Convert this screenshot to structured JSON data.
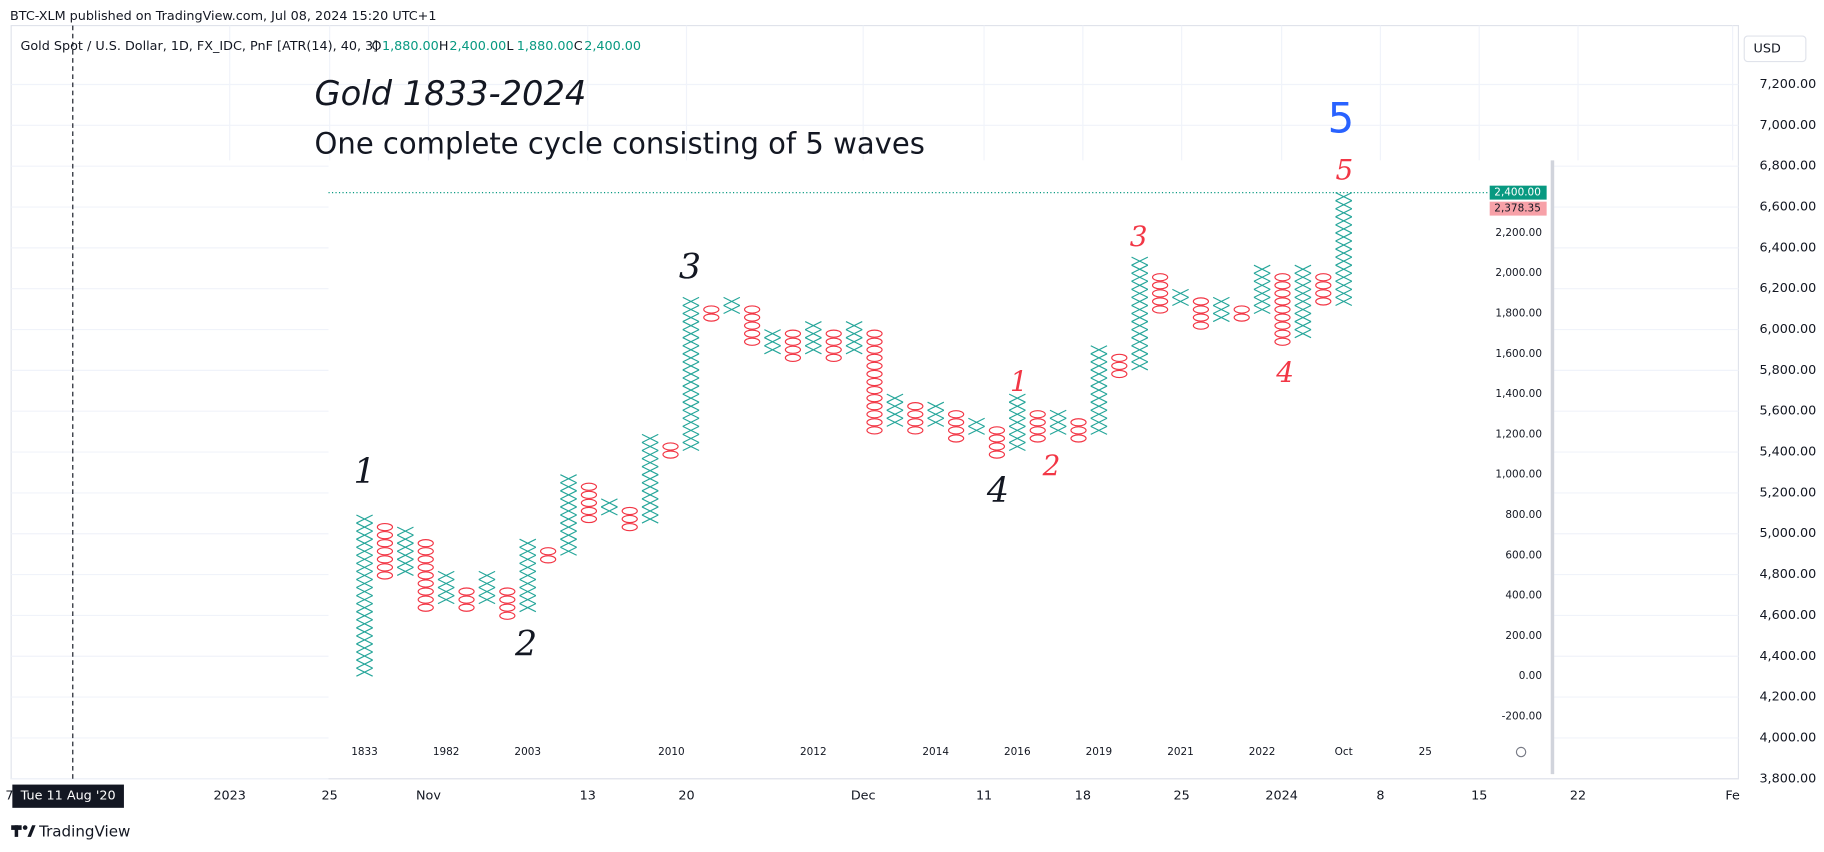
{
  "header": {
    "publisher": "BTC-XLM published on TradingView.com, Jul 08, 2024 15:20 UTC+1"
  },
  "legend": {
    "symbol": "Gold Spot / U.S. Dollar, 1D, FX_IDC, PnF [ATR(14), 40, 3]",
    "ohlc": [
      {
        "key": "O",
        "value": "1,880.00"
      },
      {
        "key": "H",
        "value": "2,400.00"
      },
      {
        "key": "L",
        "value": "1,880.00"
      },
      {
        "key": "C",
        "value": "2,400.00"
      }
    ]
  },
  "chart_data": {
    "type": "pnf",
    "title": "Gold 1833-2024",
    "subtitle": "One complete cycle consisting of 5 waves",
    "title_color": "#e0226e",
    "subtitle_color": "#2962ff",
    "x_color": "#26a69a",
    "o_color": "#f23645",
    "box_size": 40,
    "ylim": [
      -440,
      2560
    ],
    "yticks": [
      {
        "value": -200,
        "label": "-200.00"
      },
      {
        "value": 0,
        "label": "0.00"
      },
      {
        "value": 200,
        "label": "200.00"
      },
      {
        "value": 400,
        "label": "400.00"
      },
      {
        "value": 600,
        "label": "600.00"
      },
      {
        "value": 800,
        "label": "800.00"
      },
      {
        "value": 1000,
        "label": "1,000.00"
      },
      {
        "value": 1200,
        "label": "1,200.00"
      },
      {
        "value": 1400,
        "label": "1,400.00"
      },
      {
        "value": 1600,
        "label": "1,600.00"
      },
      {
        "value": 1800,
        "label": "1,800.00"
      },
      {
        "value": 2000,
        "label": "2,000.00"
      },
      {
        "value": 2200,
        "label": "2,200.00"
      }
    ],
    "x_labels": [
      "1833",
      "1982",
      "2003",
      "2010",
      "2012",
      "2014",
      "2016",
      "2019",
      "2021",
      "2022",
      "Oct",
      "25"
    ],
    "columns": [
      {
        "type": "X",
        "low": 0,
        "high": 800
      },
      {
        "type": "O",
        "low": 480,
        "high": 760
      },
      {
        "type": "X",
        "low": 500,
        "high": 720
      },
      {
        "type": "O",
        "low": 320,
        "high": 680
      },
      {
        "type": "X",
        "low": 360,
        "high": 500
      },
      {
        "type": "O",
        "low": 320,
        "high": 440
      },
      {
        "type": "X",
        "low": 360,
        "high": 500
      },
      {
        "type": "O",
        "low": 280,
        "high": 440
      },
      {
        "type": "X",
        "low": 320,
        "high": 680
      },
      {
        "type": "O",
        "low": 560,
        "high": 640
      },
      {
        "type": "X",
        "low": 600,
        "high": 1000
      },
      {
        "type": "O",
        "low": 760,
        "high": 960
      },
      {
        "type": "X",
        "low": 800,
        "high": 880
      },
      {
        "type": "O",
        "low": 720,
        "high": 840
      },
      {
        "type": "X",
        "low": 760,
        "high": 1200
      },
      {
        "type": "O",
        "low": 1080,
        "high": 1160
      },
      {
        "type": "X",
        "low": 1120,
        "high": 1880
      },
      {
        "type": "O",
        "low": 1760,
        "high": 1840
      },
      {
        "type": "X",
        "low": 1800,
        "high": 1880
      },
      {
        "type": "O",
        "low": 1640,
        "high": 1840
      },
      {
        "type": "X",
        "low": 1600,
        "high": 1720
      },
      {
        "type": "O",
        "low": 1560,
        "high": 1720
      },
      {
        "type": "X",
        "low": 1600,
        "high": 1760
      },
      {
        "type": "O",
        "low": 1560,
        "high": 1720
      },
      {
        "type": "X",
        "low": 1600,
        "high": 1760
      },
      {
        "type": "O",
        "low": 1200,
        "high": 1720
      },
      {
        "type": "X",
        "low": 1240,
        "high": 1400
      },
      {
        "type": "O",
        "low": 1200,
        "high": 1360
      },
      {
        "type": "X",
        "low": 1240,
        "high": 1360
      },
      {
        "type": "O",
        "low": 1160,
        "high": 1320
      },
      {
        "type": "X",
        "low": 1200,
        "high": 1280
      },
      {
        "type": "O",
        "low": 1080,
        "high": 1240
      },
      {
        "type": "X",
        "low": 1120,
        "high": 1400
      },
      {
        "type": "O",
        "low": 1160,
        "high": 1320
      },
      {
        "type": "X",
        "low": 1200,
        "high": 1320
      },
      {
        "type": "O",
        "low": 1160,
        "high": 1280
      },
      {
        "type": "X",
        "low": 1200,
        "high": 1640
      },
      {
        "type": "O",
        "low": 1480,
        "high": 1600
      },
      {
        "type": "X",
        "low": 1520,
        "high": 2080
      },
      {
        "type": "O",
        "low": 1800,
        "high": 2000
      },
      {
        "type": "X",
        "low": 1840,
        "high": 1920
      },
      {
        "type": "O",
        "low": 1720,
        "high": 1880
      },
      {
        "type": "X",
        "low": 1760,
        "high": 1880
      },
      {
        "type": "O",
        "low": 1760,
        "high": 1840
      },
      {
        "type": "X",
        "low": 1800,
        "high": 2040
      },
      {
        "type": "O",
        "low": 1640,
        "high": 2000
      },
      {
        "type": "X",
        "low": 1680,
        "high": 2040
      },
      {
        "type": "O",
        "low": 1840,
        "high": 2000
      },
      {
        "type": "X",
        "low": 1840,
        "high": 2400
      }
    ],
    "waves": [
      {
        "text": "1",
        "color": "#131722"
      },
      {
        "text": "2",
        "color": "#131722"
      },
      {
        "text": "3",
        "color": "#131722"
      },
      {
        "text": "4",
        "color": "#131722"
      },
      {
        "text": "1",
        "color": "#f23645"
      },
      {
        "text": "2",
        "color": "#f23645"
      },
      {
        "text": "3",
        "color": "#f23645"
      },
      {
        "text": "4",
        "color": "#f23645"
      },
      {
        "text": "5",
        "color": "#f23645"
      }
    ],
    "cycle_label": {
      "text": "5",
      "color": "#2962ff"
    },
    "price_labels": [
      {
        "value": 2400,
        "label": "2,400.00",
        "color": "#089981"
      },
      {
        "value": 2378.35,
        "label": "2,378.35",
        "color": "#f7a1a8"
      }
    ]
  },
  "price_scale": {
    "currency": "USD",
    "ylim": [
      3800,
      7500
    ],
    "ticks": [
      {
        "value": 3800,
        "label": "3,800.00"
      },
      {
        "value": 4000,
        "label": "4,000.00"
      },
      {
        "value": 4200,
        "label": "4,200.00"
      },
      {
        "value": 4400,
        "label": "4,400.00"
      },
      {
        "value": 4600,
        "label": "4,600.00"
      },
      {
        "value": 4800,
        "label": "4,800.00"
      },
      {
        "value": 5000,
        "label": "5,000.00"
      },
      {
        "value": 5200,
        "label": "5,200.00"
      },
      {
        "value": 5400,
        "label": "5,400.00"
      },
      {
        "value": 5600,
        "label": "5,600.00"
      },
      {
        "value": 5800,
        "label": "5,800.00"
      },
      {
        "value": 6000,
        "label": "6,000.00"
      },
      {
        "value": 6200,
        "label": "6,200.00"
      },
      {
        "value": 6400,
        "label": "6,400.00"
      },
      {
        "value": 6600,
        "label": "6,600.00"
      },
      {
        "value": 6800,
        "label": "6,800.00"
      },
      {
        "value": 7000,
        "label": "7,000.00"
      },
      {
        "value": 7200,
        "label": "7,200.00"
      }
    ]
  },
  "time_axis": {
    "cursor_label": "Tue 11 Aug '20",
    "edge_label": "7",
    "labels": [
      "2023",
      "25",
      "Nov",
      "13",
      "20",
      "Dec",
      "11",
      "18",
      "25",
      "2024",
      "8",
      "15",
      "22",
      "Fe"
    ]
  },
  "footer": {
    "brand": "TradingView"
  }
}
